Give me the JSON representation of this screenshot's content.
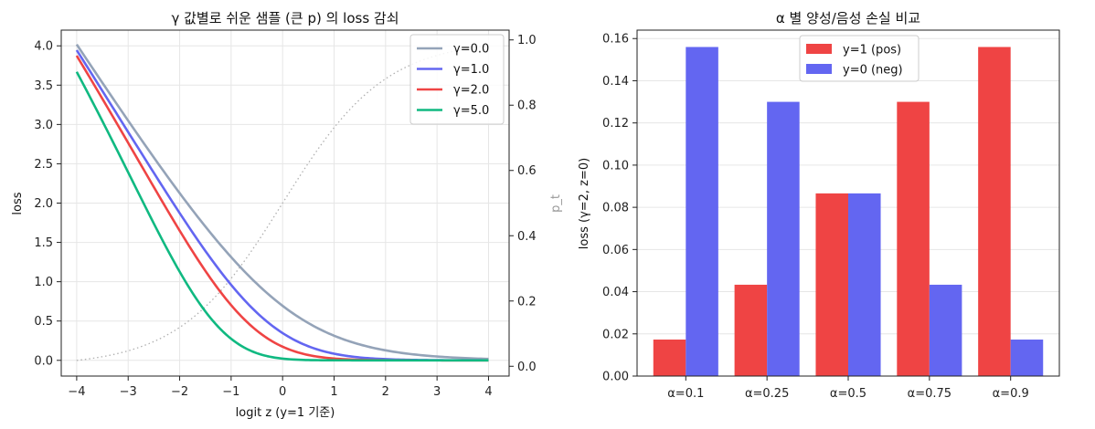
{
  "chart_data": [
    {
      "type": "line",
      "title": "γ 값별로 쉬운 샘플 (큰 p) 의 loss 감쇠",
      "xlabel": "logit z (y=1 기준)",
      "ylabel": "loss",
      "ylabel_right": "p_t",
      "xlim": [
        -4.3,
        4.4
      ],
      "ylim": [
        -0.2,
        4.2
      ],
      "ylim_right": [
        -0.03,
        1.03
      ],
      "xticks": [
        "−4",
        "−3",
        "−2",
        "−1",
        "0",
        "1",
        "2",
        "3",
        "4"
      ],
      "yticks": [
        "0.0",
        "0.5",
        "1.0",
        "1.5",
        "2.0",
        "2.5",
        "3.0",
        "3.5",
        "4.0"
      ],
      "yticks_right": [
        "0.0",
        "0.2",
        "0.4",
        "0.6",
        "0.8",
        "1.0"
      ],
      "grid": true,
      "legend_position": "top-right",
      "series": [
        {
          "name": "γ=0.0",
          "gamma": 0.0,
          "color": "#94a3b8"
        },
        {
          "name": "γ=1.0",
          "gamma": 1.0,
          "color": "#6366f1"
        },
        {
          "name": "γ=2.0",
          "gamma": 2.0,
          "color": "#ef4444"
        },
        {
          "name": "γ=5.0",
          "gamma": 5.0,
          "color": "#10b981"
        }
      ],
      "secondary_series": {
        "color": "#b0b0b0",
        "style": "dotted"
      }
    },
    {
      "type": "bar",
      "title": "α 별 양성/음성 손실 비교",
      "xlabel": "",
      "ylabel": "loss (γ=2, z=0)",
      "ylim": [
        0,
        0.164
      ],
      "yticks": [
        "0.00",
        "0.02",
        "0.04",
        "0.06",
        "0.08",
        "0.10",
        "0.12",
        "0.14",
        "0.16"
      ],
      "grid": true,
      "legend_position": "top-center",
      "categories": [
        "α=0.1",
        "α=0.25",
        "α=0.5",
        "α=0.75",
        "α=0.9"
      ],
      "series": [
        {
          "name": "y=1 (pos)",
          "color": "#ef4444",
          "values": [
            0.0173,
            0.0433,
            0.0866,
            0.13,
            0.156
          ]
        },
        {
          "name": "y=0 (neg)",
          "color": "#6366f1",
          "values": [
            0.156,
            0.13,
            0.0866,
            0.0433,
            0.0173
          ]
        }
      ]
    }
  ]
}
